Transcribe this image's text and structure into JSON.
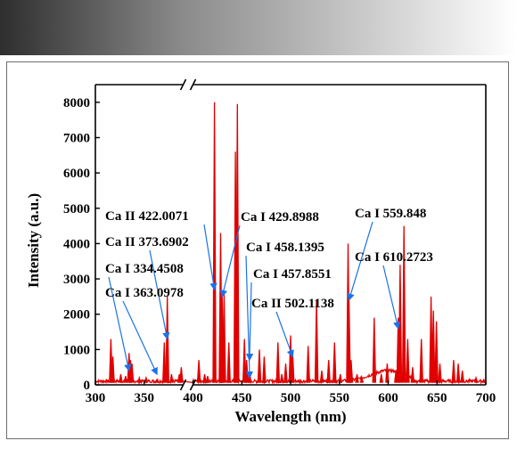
{
  "header": {
    "gradient_start": "#2e2e2e",
    "gradient_end": "#ffffff"
  },
  "chart_data": {
    "type": "line",
    "title": "",
    "xlabel": "Wavelength (nm)",
    "ylabel": "Intensity (a.u.)",
    "xlim": [
      300,
      700
    ],
    "ylim": [
      0,
      8500
    ],
    "x_axis_break": [
      390,
      400
    ],
    "y_axis_break": 8300,
    "xticks": [
      "300",
      "350",
      "400",
      "450",
      "500",
      "550",
      "600",
      "650",
      "700"
    ],
    "yticks": [
      "0",
      "1000",
      "2000",
      "3000",
      "4000",
      "5000",
      "6000",
      "7000",
      "8000"
    ],
    "grid": false,
    "line_color": "#e00000",
    "baseline": 60,
    "series": [
      {
        "peaks": [
          [
            315.9,
            1300
          ],
          [
            317.9,
            800
          ],
          [
            326,
            300
          ],
          [
            331,
            250
          ],
          [
            334.5,
            900
          ],
          [
            336,
            700
          ],
          [
            337.5,
            600
          ],
          [
            345,
            200
          ],
          [
            352,
            200
          ],
          [
            363.1,
            150
          ],
          [
            370.6,
            1200
          ],
          [
            373.7,
            2500
          ],
          [
            378,
            300
          ],
          [
            386,
            300
          ],
          [
            388,
            500
          ],
          [
            406,
            700
          ],
          [
            412,
            300
          ],
          [
            415,
            250
          ],
          [
            422.0,
            8000
          ],
          [
            428.3,
            4300
          ],
          [
            429.9,
            2500
          ],
          [
            431.9,
            2600
          ],
          [
            436.7,
            1200
          ],
          [
            443.5,
            6600
          ],
          [
            445.5,
            7950
          ],
          [
            452.7,
            1300
          ],
          [
            455,
            700
          ],
          [
            457.9,
            300
          ],
          [
            458.1,
            350
          ],
          [
            468,
            1000
          ],
          [
            473,
            800
          ],
          [
            487,
            1200
          ],
          [
            491,
            300
          ],
          [
            495,
            600
          ],
          [
            500,
            1400
          ],
          [
            502.1,
            900
          ],
          [
            518,
            1100
          ],
          [
            526.6,
            2400
          ],
          [
            532,
            400
          ],
          [
            539,
            700
          ],
          [
            545,
            1200
          ],
          [
            551,
            300
          ],
          [
            558.9,
            4000
          ],
          [
            559.8,
            2400
          ],
          [
            562,
            700
          ],
          [
            568,
            300
          ],
          [
            573,
            200
          ],
          [
            585.7,
            1900
          ],
          [
            593,
            300
          ],
          [
            599,
            600
          ],
          [
            608,
            400
          ],
          [
            610.3,
            1900
          ],
          [
            612.2,
            3400
          ],
          [
            616.2,
            4500
          ],
          [
            620,
            1300
          ],
          [
            625,
            500
          ],
          [
            634,
            1300
          ],
          [
            643.9,
            2500
          ],
          [
            646.3,
            2100
          ],
          [
            649.4,
            1800
          ],
          [
            653,
            600
          ],
          [
            667,
            700
          ],
          [
            671.8,
            600
          ],
          [
            676,
            400
          ],
          [
            690,
            200
          ],
          [
            698,
            150
          ]
        ]
      }
    ],
    "annotations": [
      {
        "text": "Ca II 422.0071",
        "x": 422.0,
        "y": 2700
      },
      {
        "text": "Ca II 373.6902",
        "x": 373.7,
        "y": 1300
      },
      {
        "text": "Ca I 334.4508",
        "x": 334.5,
        "y": 400
      },
      {
        "text": "Ca I 363.0978",
        "x": 363.1,
        "y": 300
      },
      {
        "text": "Ca I 429.8988",
        "x": 429.9,
        "y": 2500
      },
      {
        "text": "Ca I 458.1395",
        "x": 458.1,
        "y": 200
      },
      {
        "text": "Ca I 457.8551",
        "x": 457.9,
        "y": 700
      },
      {
        "text": "Ca II 502.1138",
        "x": 502.1,
        "y": 800
      },
      {
        "text": "Ca I 559.848",
        "x": 559.8,
        "y": 2400
      },
      {
        "text": "Ca I 610.2723",
        "x": 610.3,
        "y": 1600
      }
    ]
  }
}
